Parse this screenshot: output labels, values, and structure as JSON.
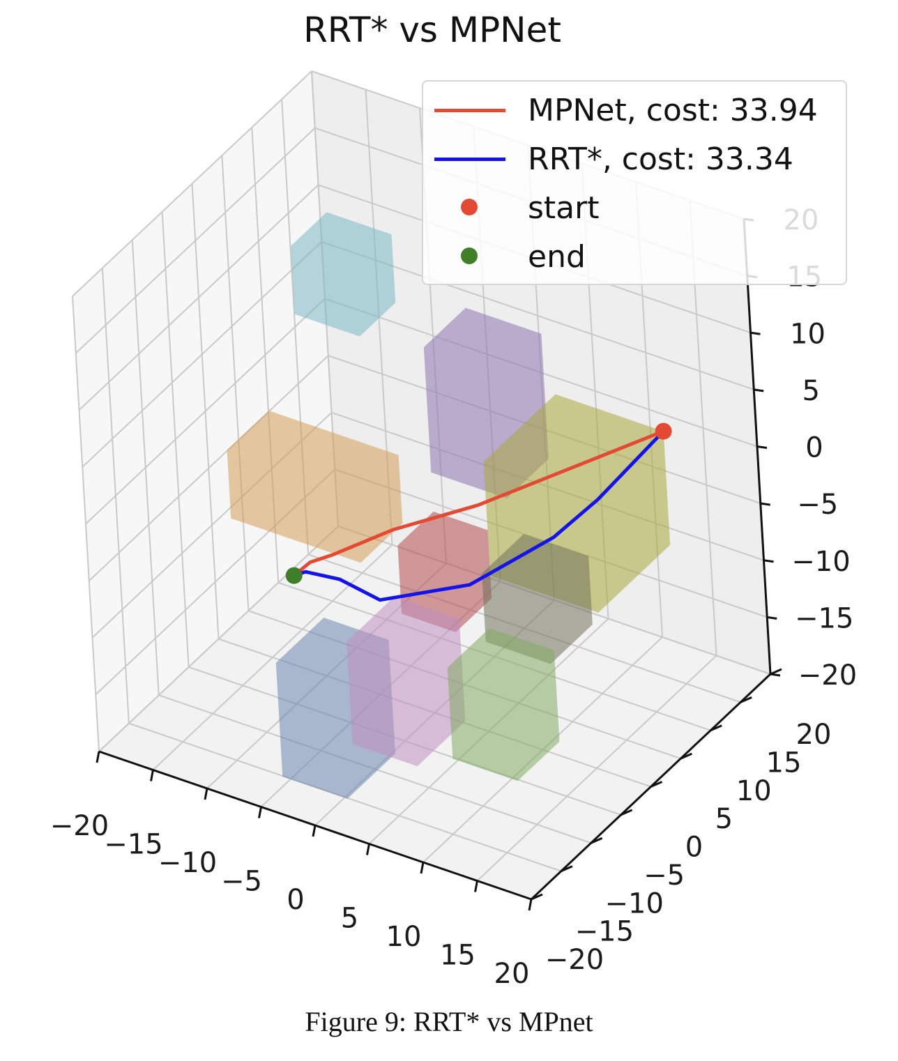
{
  "title": "RRT* vs MPNet",
  "caption": "Figure 9:  RRT* vs MPnet",
  "legend": {
    "mpnet_label": "MPNet, cost: 33.94",
    "rrt_label": "RRT*, cost: 33.34",
    "start_label": "start",
    "end_label": "end"
  },
  "colors": {
    "mpnet": "#e24a33",
    "rrt": "#1414e6",
    "start": "#e24a33",
    "end": "#3f7f2a"
  },
  "chart_data": {
    "type": "3d-line",
    "title": "RRT* vs MPNet",
    "xlim": [
      -20,
      20
    ],
    "ylim": [
      -20,
      20
    ],
    "zlim": [
      -20,
      20
    ],
    "grid": true,
    "legend_position": "top-right",
    "x_ticks": [
      "−20",
      "−15",
      "−10",
      "−5",
      "0",
      "5",
      "10",
      "15",
      "20"
    ],
    "y_ticks": [
      "−20",
      "−15",
      "−10",
      "−5",
      "0",
      "5",
      "10",
      "15",
      "20"
    ],
    "z_ticks": [
      "−20",
      "−15",
      "−10",
      "−5",
      "0",
      "5",
      "10",
      "15",
      "20"
    ],
    "series": [
      {
        "name": "MPNet, cost: 33.94",
        "color": "#e24a33",
        "points": [
          [
            -3,
            -16,
            -1
          ],
          [
            -2,
            -15,
            0
          ],
          [
            -1,
            -13,
            0
          ],
          [
            3,
            -10,
            2
          ],
          [
            7,
            -3,
            2
          ],
          [
            16,
            12,
            4
          ]
        ]
      },
      {
        "name": "RRT*, cost: 33.34",
        "color": "#1414e6",
        "points": [
          [
            -3,
            -16,
            -1
          ],
          [
            -2.5,
            -15,
            -1
          ],
          [
            -0.5,
            -13,
            -2
          ],
          [
            2,
            -11,
            -4
          ],
          [
            7,
            -5,
            -4
          ],
          [
            11,
            2,
            -2
          ],
          [
            13,
            6,
            0
          ],
          [
            16,
            12,
            4
          ]
        ]
      }
    ],
    "markers": [
      {
        "name": "start",
        "point": [
          16,
          12,
          4
        ],
        "color": "#e24a33"
      },
      {
        "name": "end",
        "point": [
          -3,
          -16,
          -1
        ],
        "color": "#3f7f2a"
      }
    ],
    "obstacles": [
      {
        "name": "cyan-box",
        "min": [
          -14,
          5,
          8
        ],
        "max": [
          -8,
          11,
          14
        ],
        "color": "#79b6c4"
      },
      {
        "name": "purple-box",
        "min": [
          -2,
          5,
          -2
        ],
        "max": [
          5,
          12,
          9
        ],
        "color": "#8b74ad"
      },
      {
        "name": "orange-box",
        "min": [
          -14,
          -7,
          -4
        ],
        "max": [
          -2,
          0,
          2
        ],
        "color": "#d39a58"
      },
      {
        "name": "olive-box",
        "min": [
          6,
          0,
          -6
        ],
        "max": [
          16,
          12,
          4
        ],
        "color": "#a8a83a"
      },
      {
        "name": "red-box",
        "min": [
          1,
          -6,
          -8
        ],
        "max": [
          6,
          0,
          -2
        ],
        "color": "#b24a4a"
      },
      {
        "name": "gray-box",
        "min": [
          7,
          -3,
          -10
        ],
        "max": [
          13,
          4,
          -4
        ],
        "color": "#6f6f5a"
      },
      {
        "name": "blue-box",
        "min": [
          -4,
          -18,
          -18
        ],
        "max": [
          2,
          -10,
          -8
        ],
        "color": "#6a86ad"
      },
      {
        "name": "pink-box",
        "min": [
          1,
          -15,
          -15
        ],
        "max": [
          7,
          -7,
          -6
        ],
        "color": "#c08fc0"
      },
      {
        "name": "green-box",
        "min": [
          8,
          -11,
          -16
        ],
        "max": [
          14,
          -4,
          -8
        ],
        "color": "#7faa60"
      }
    ]
  }
}
